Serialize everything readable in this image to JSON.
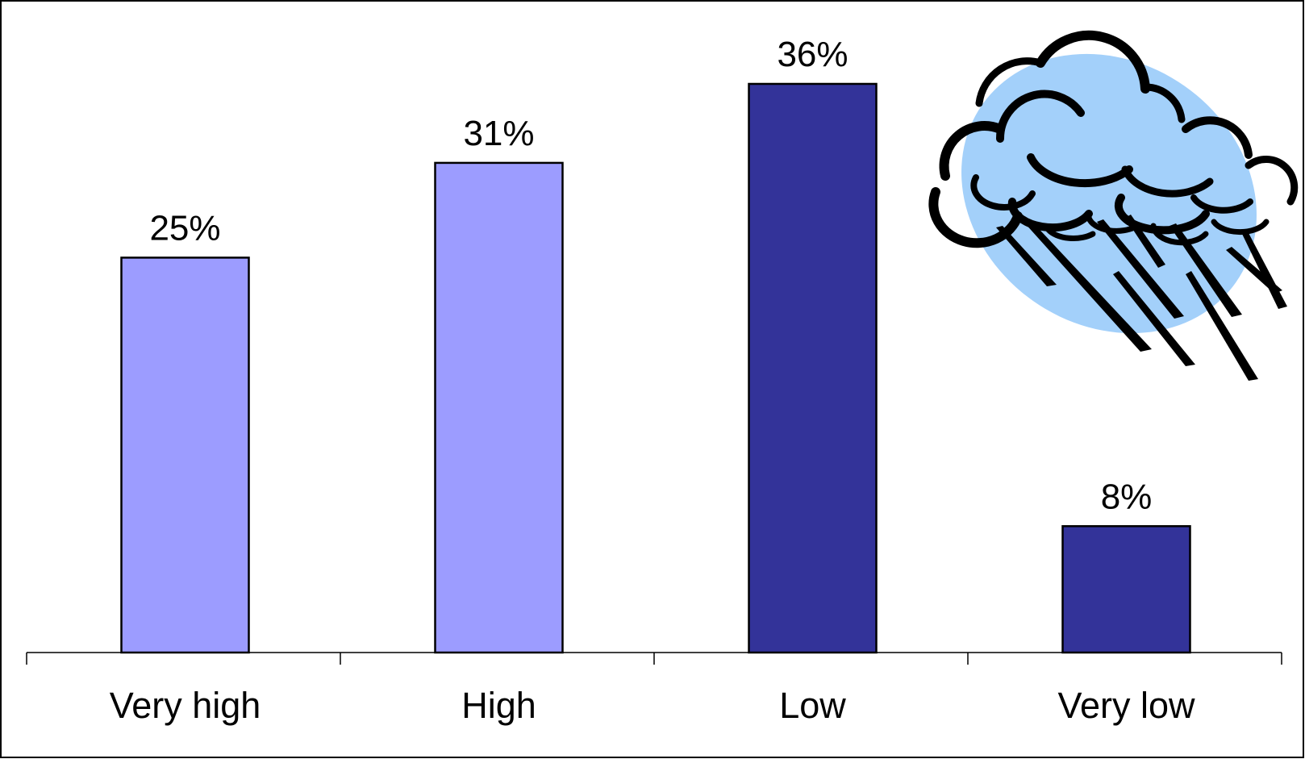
{
  "chart_data": {
    "type": "bar",
    "title": "",
    "xlabel": "",
    "ylabel": "",
    "categories": [
      "Very high",
      "High",
      "Low",
      "Very low"
    ],
    "values": [
      25,
      31,
      36,
      8
    ],
    "value_labels": [
      "25%",
      "31%",
      "36%",
      "8%"
    ],
    "bar_colors": [
      "#9c9cff",
      "#9c9cff",
      "#333399",
      "#333399"
    ],
    "ylim": [
      0,
      45
    ],
    "grid": false,
    "legend": "none",
    "decoration": "rain-cloud-icon"
  }
}
